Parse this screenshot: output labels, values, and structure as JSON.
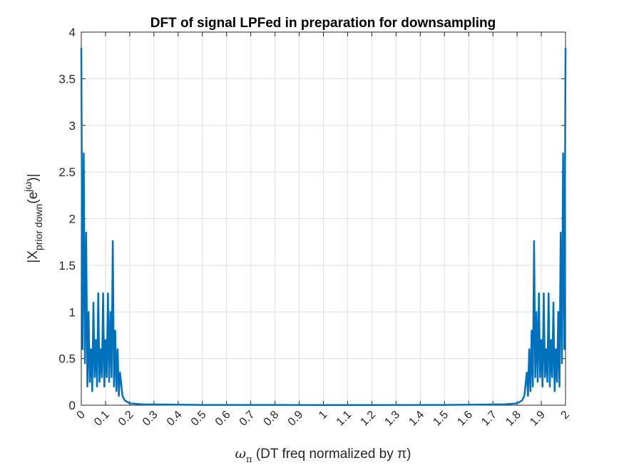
{
  "chart_data": {
    "type": "line",
    "title": "DFT of signal LPFed in preparation for downsampling",
    "xlabel": {
      "symbol": "ω",
      "sub": "π",
      "rest": " (DT freq normalized by π)"
    },
    "ylabel": {
      "main": "|X",
      "sub": "prior down",
      "mid": "(e",
      "sup": "jω",
      "end": ")|"
    },
    "x": [
      0,
      0.005,
      0.01,
      0.015,
      0.02,
      0.025,
      0.03,
      0.035,
      0.04,
      0.045,
      0.05,
      0.055,
      0.06,
      0.065,
      0.07,
      0.075,
      0.08,
      0.085,
      0.09,
      0.095,
      0.1,
      0.105,
      0.11,
      0.115,
      0.12,
      0.125,
      0.13,
      0.135,
      0.14,
      0.145,
      0.15,
      0.155,
      0.16,
      0.17,
      0.18,
      0.2,
      0.25,
      0.5,
      1.0,
      1.5,
      1.75,
      1.8,
      1.82,
      1.83,
      1.84,
      1.845,
      1.85,
      1.855,
      1.86,
      1.865,
      1.87,
      1.875,
      1.88,
      1.885,
      1.89,
      1.895,
      1.9,
      1.905,
      1.91,
      1.915,
      1.92,
      1.925,
      1.93,
      1.935,
      1.94,
      1.945,
      1.95,
      1.955,
      1.96,
      1.965,
      1.97,
      1.975,
      1.98,
      1.985,
      1.99,
      1.995,
      2
    ],
    "values": [
      3.83,
      0.6,
      2.7,
      0.45,
      1.85,
      0.2,
      1.0,
      0.25,
      0.6,
      0.15,
      1.1,
      0.3,
      0.7,
      0.2,
      1.2,
      0.25,
      0.6,
      0.3,
      1.2,
      0.2,
      0.7,
      0.3,
      1.2,
      0.25,
      1.0,
      0.3,
      1.76,
      0.2,
      0.8,
      0.15,
      0.6,
      0.1,
      0.35,
      0.1,
      0.05,
      0.02,
      0.01,
      0.003,
      0.002,
      0.003,
      0.01,
      0.02,
      0.05,
      0.1,
      0.35,
      0.1,
      0.6,
      0.15,
      0.8,
      0.2,
      1.76,
      0.3,
      1.0,
      0.25,
      1.2,
      0.3,
      0.7,
      0.2,
      1.2,
      0.3,
      0.6,
      0.25,
      1.2,
      0.2,
      0.7,
      0.3,
      1.1,
      0.15,
      0.6,
      0.25,
      1.0,
      0.2,
      1.85,
      0.45,
      2.7,
      0.6,
      3.83
    ],
    "color": "#0072bd",
    "xlim": [
      0,
      2
    ],
    "xticks": [
      0,
      0.1,
      0.2,
      0.3,
      0.4,
      0.5,
      0.6,
      0.7,
      0.8,
      0.9,
      1,
      1.1,
      1.2,
      1.3,
      1.4,
      1.5,
      1.6,
      1.7,
      1.8,
      1.9,
      2
    ],
    "ylim": [
      0,
      4
    ],
    "yticks": [
      0,
      0.5,
      1,
      1.5,
      2,
      2.5,
      3,
      3.5,
      4
    ],
    "grid": true
  }
}
